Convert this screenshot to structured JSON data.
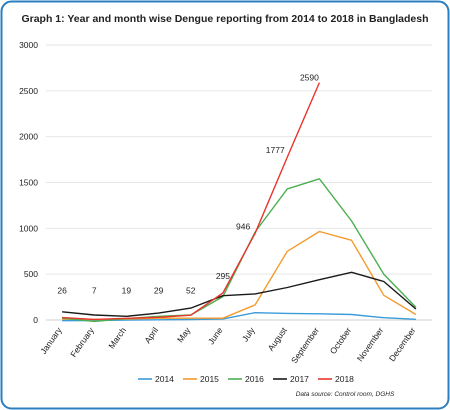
{
  "chart_data": {
    "type": "line",
    "title": "Graph 1: Year and month wise Dengue reporting from 2014 to 2018 in Bangladesh",
    "xlabel": "",
    "ylabel": "",
    "categories": [
      "January",
      "February",
      "March",
      "April",
      "May",
      "June",
      "July",
      "August",
      "September",
      "October",
      "November",
      "December"
    ],
    "ylim": [
      0,
      3000
    ],
    "yticks": [
      0,
      500,
      1000,
      1500,
      2000,
      2500,
      3000
    ],
    "grid": "horizontal",
    "legend_position": "bottom",
    "series": [
      {
        "name": "2014",
        "color": "#3a9bd9",
        "values": [
          -8,
          -5,
          0,
          2,
          5,
          12,
          80,
          72,
          68,
          60,
          25,
          8
        ]
      },
      {
        "name": "2015",
        "color": "#f39b2d",
        "values": [
          10,
          5,
          10,
          20,
          20,
          20,
          165,
          750,
          965,
          870,
          270,
          60
        ]
      },
      {
        "name": "2016",
        "color": "#4caf50",
        "values": [
          20,
          -15,
          15,
          40,
          55,
          255,
          960,
          1430,
          1540,
          1080,
          500,
          140
        ]
      },
      {
        "name": "2017",
        "color": "#1a1a1a",
        "values": [
          90,
          55,
          40,
          75,
          130,
          265,
          285,
          355,
          440,
          520,
          420,
          120
        ]
      },
      {
        "name": "2018",
        "color": "#e8352c",
        "values": [
          26,
          7,
          19,
          29,
          52,
          295,
          946,
          1777,
          2590,
          null,
          null,
          null
        ]
      }
    ],
    "data_labels": [
      {
        "series": "2018",
        "index": 0,
        "text": "26"
      },
      {
        "series": "2018",
        "index": 1,
        "text": "7"
      },
      {
        "series": "2018",
        "index": 2,
        "text": "19"
      },
      {
        "series": "2018",
        "index": 3,
        "text": "29"
      },
      {
        "series": "2018",
        "index": 4,
        "text": "52"
      },
      {
        "series": "2018",
        "index": 5,
        "text": "295"
      },
      {
        "series": "2018",
        "index": 6,
        "text": "946"
      },
      {
        "series": "2018",
        "index": 7,
        "text": "1777"
      },
      {
        "series": "2018",
        "index": 8,
        "text": "2590"
      }
    ],
    "source_note": "Data source: Control room, DGHS",
    "colors": {
      "background": "#ffffff",
      "frame": "#2b7fc0",
      "gridline": "#e6e6e6",
      "text": "#222222"
    }
  }
}
